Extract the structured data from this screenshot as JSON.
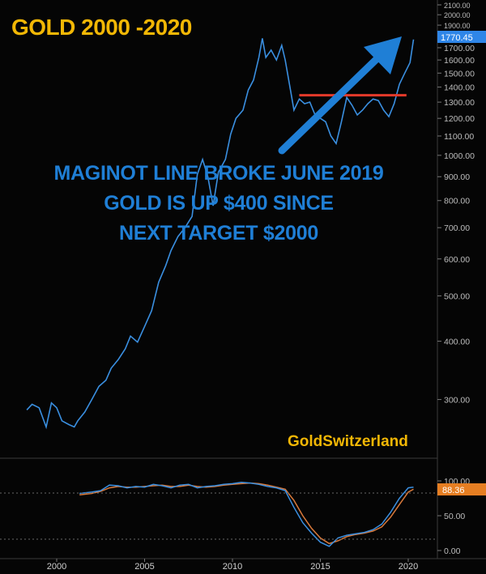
{
  "header": {
    "title": "GOLD 2000 -2020"
  },
  "annotations": {
    "line1": "MAGINOT LINE BROKE JUNE 2019",
    "line2": "GOLD IS UP $400 SINCE",
    "line3": "NEXT TARGET $2000",
    "brand": "GoldSwitzerland"
  },
  "colors": {
    "background": "#050505",
    "price_line": "#3a8fe0",
    "trend_arrow": "#1f7fd6",
    "resistance_line": "#e53a2a",
    "title": "#f2b705",
    "osc_k": "#3a8fe0",
    "osc_d": "#d9793a",
    "last_price_badge": "#2f86e8",
    "osc_badge": "#e67e22"
  },
  "chart_data": [
    {
      "type": "line",
      "name": "price",
      "scale": "log",
      "ylim": [
        230,
        2100
      ],
      "xlim": [
        1998.0,
        2021.0
      ],
      "y_ticks": [
        300,
        400,
        500,
        600,
        700,
        800,
        900,
        1000,
        1100,
        1200,
        1300,
        1400,
        1500,
        1600,
        1700,
        1800,
        1900,
        2000,
        2100
      ],
      "y_tick_labels": [
        "300.00",
        "400.00",
        "500.00",
        "600.00",
        "700.00",
        "800.00",
        "900.00",
        "1000.00",
        "1100.00",
        "1200.00",
        "1300.00",
        "1400.00",
        "1500.00",
        "1600.00",
        "1700.00",
        "1800.00",
        "1900.00",
        "2000.00",
        "2100.00"
      ],
      "last_value": 1770.45,
      "last_value_label": "1770.45",
      "resistance": {
        "value": 1345,
        "x_start": 2013.8,
        "x_end": 2019.9
      },
      "x": [
        1998.3,
        1998.6,
        1999.0,
        1999.4,
        1999.7,
        2000.0,
        2000.3,
        2000.7,
        2001.0,
        2001.2,
        2001.6,
        2002.0,
        2002.4,
        2002.8,
        2003.1,
        2003.5,
        2003.9,
        2004.2,
        2004.6,
        2005.0,
        2005.4,
        2005.8,
        2006.2,
        2006.5,
        2006.9,
        2007.3,
        2007.7,
        2008.0,
        2008.3,
        2008.6,
        2008.9,
        2009.2,
        2009.6,
        2009.9,
        2010.2,
        2010.6,
        2010.9,
        2011.2,
        2011.5,
        2011.7,
        2011.9,
        2012.2,
        2012.5,
        2012.8,
        2013.0,
        2013.3,
        2013.5,
        2013.8,
        2014.1,
        2014.4,
        2014.7,
        2015.0,
        2015.3,
        2015.6,
        2015.9,
        2016.2,
        2016.5,
        2016.8,
        2017.1,
        2017.4,
        2017.7,
        2018.0,
        2018.3,
        2018.6,
        2018.9,
        2019.2,
        2019.5,
        2019.8,
        2020.1,
        2020.3
      ],
      "y": [
        285,
        293,
        288,
        262,
        295,
        288,
        270,
        265,
        262,
        270,
        282,
        300,
        320,
        330,
        350,
        365,
        385,
        410,
        398,
        430,
        465,
        535,
        580,
        625,
        670,
        700,
        740,
        910,
        980,
        900,
        780,
        920,
        980,
        1110,
        1200,
        1250,
        1380,
        1450,
        1620,
        1780,
        1620,
        1680,
        1600,
        1720,
        1600,
        1380,
        1250,
        1320,
        1290,
        1300,
        1220,
        1200,
        1180,
        1100,
        1060,
        1180,
        1330,
        1280,
        1220,
        1250,
        1290,
        1320,
        1310,
        1250,
        1210,
        1290,
        1420,
        1500,
        1580,
        1770
      ]
    },
    {
      "type": "line",
      "name": "oscillator",
      "ylim": [
        0,
        100
      ],
      "y_ticks": [
        0,
        50,
        100
      ],
      "y_tick_labels": [
        "0.00",
        "50.00",
        "100.00"
      ],
      "last_value": 88.36,
      "last_value_label": "88.36",
      "x_ticks": [
        2000,
        2005,
        2010,
        2015,
        2020
      ],
      "x_tick_labels": [
        "2000",
        "2005",
        "2010",
        "2015",
        "2020"
      ],
      "series": [
        {
          "key": "k",
          "x": [
            2001.3,
            2002.0,
            2002.5,
            2003.0,
            2003.5,
            2004.0,
            2004.5,
            2005.0,
            2005.5,
            2006.0,
            2006.5,
            2007.0,
            2007.5,
            2008.0,
            2008.5,
            2009.0,
            2009.5,
            2010.0,
            2010.5,
            2011.0,
            2011.5,
            2012.0,
            2012.5,
            2013.0,
            2013.5,
            2014.0,
            2014.5,
            2015.0,
            2015.5,
            2016.0,
            2016.5,
            2017.0,
            2017.5,
            2018.0,
            2018.5,
            2019.0,
            2019.5,
            2020.0,
            2020.3
          ],
          "y": [
            82,
            84,
            86,
            94,
            93,
            90,
            92,
            91,
            95,
            93,
            90,
            94,
            95,
            90,
            92,
            93,
            95,
            96,
            98,
            97,
            95,
            92,
            90,
            86,
            62,
            40,
            25,
            12,
            6,
            18,
            22,
            24,
            26,
            30,
            38,
            55,
            75,
            90,
            91
          ]
        },
        {
          "key": "d",
          "x": [
            2001.3,
            2002.0,
            2002.5,
            2003.0,
            2003.5,
            2004.0,
            2004.5,
            2005.0,
            2005.5,
            2006.0,
            2006.5,
            2007.0,
            2007.5,
            2008.0,
            2008.5,
            2009.0,
            2009.5,
            2010.0,
            2010.5,
            2011.0,
            2011.5,
            2012.0,
            2012.5,
            2013.0,
            2013.5,
            2014.0,
            2014.5,
            2015.0,
            2015.5,
            2016.0,
            2016.5,
            2017.0,
            2017.5,
            2018.0,
            2018.5,
            2019.0,
            2019.5,
            2020.0,
            2020.3
          ],
          "y": [
            80,
            82,
            85,
            90,
            92,
            91,
            91,
            92,
            93,
            94,
            92,
            92,
            94,
            92,
            91,
            92,
            94,
            95,
            96,
            97,
            96,
            94,
            91,
            88,
            72,
            50,
            32,
            18,
            10,
            14,
            20,
            23,
            25,
            28,
            34,
            48,
            66,
            84,
            88
          ]
        }
      ]
    }
  ]
}
